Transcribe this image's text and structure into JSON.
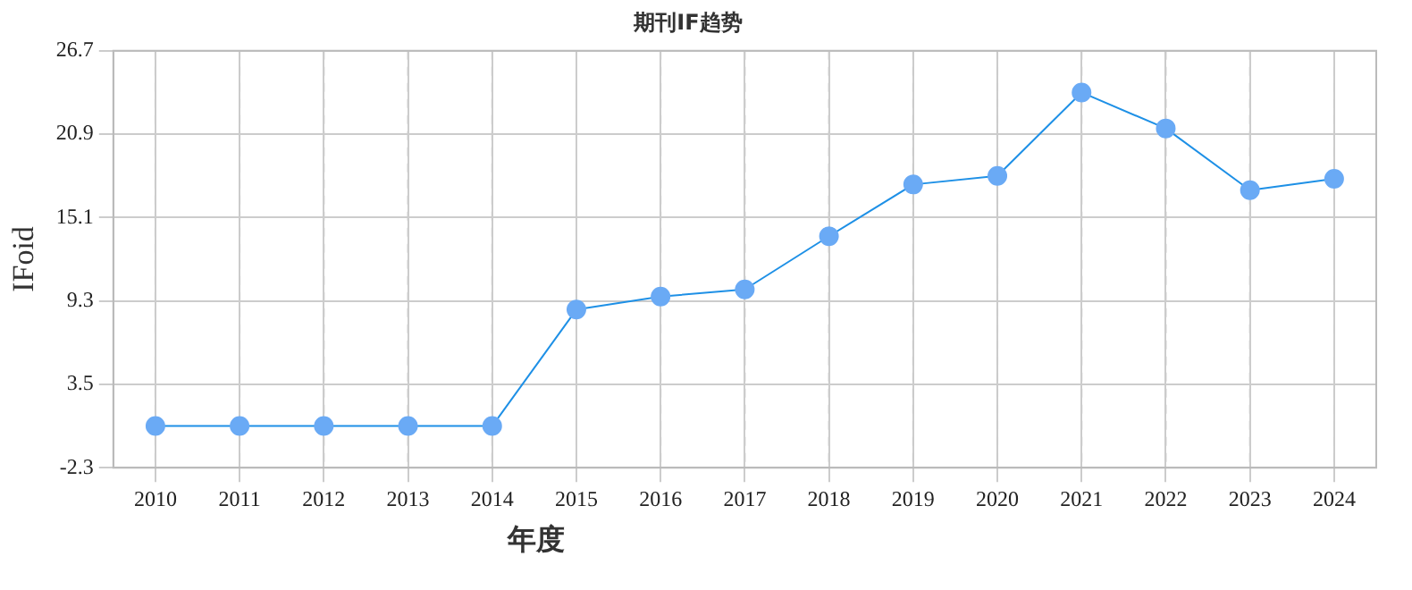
{
  "chart_data": {
    "type": "line",
    "title": "期刊IF趋势",
    "xlabel": "年度",
    "ylabel": "IFoid",
    "categories": [
      "2010",
      "2011",
      "2012",
      "2013",
      "2014",
      "2015",
      "2016",
      "2017",
      "2018",
      "2019",
      "2020",
      "2021",
      "2022",
      "2023",
      "2024"
    ],
    "series": [
      {
        "color": "#1e90e6",
        "values": [
          0.6,
          0.6,
          0.6,
          0.6,
          0.6,
          8.7,
          9.6,
          10.1,
          13.8,
          17.4,
          18.0,
          23.8,
          21.3,
          17.0,
          17.8
        ]
      }
    ],
    "ylim": [
      -2.3,
      26.7
    ],
    "yticks": [
      -2.3,
      3.5,
      9.3,
      15.1,
      20.9,
      26.7
    ],
    "grid": true,
    "marker": "circle",
    "line_style": "solid",
    "legend": false
  }
}
